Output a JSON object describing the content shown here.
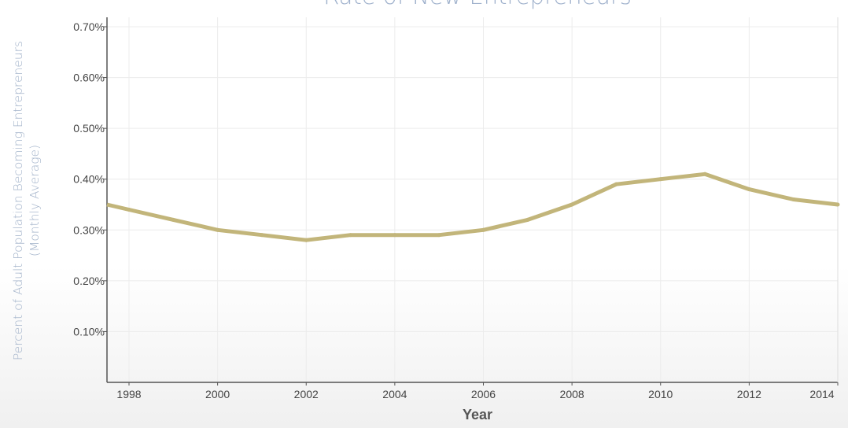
{
  "chart_data": {
    "type": "line",
    "title": "Rate of New Entrepreneurs",
    "xlabel": "Year",
    "ylabel_lines": [
      "Percent of Adult Population Becoming Entrepreneurs",
      "(Monthly Average)"
    ],
    "x": [
      1998,
      1999,
      2000,
      2001,
      2002,
      2003,
      2004,
      2005,
      2006,
      2007,
      2008,
      2009,
      2010,
      2011,
      2012,
      2013,
      2014
    ],
    "series": [
      {
        "values": [
          0.34,
          0.32,
          0.3,
          0.29,
          0.28,
          0.29,
          0.29,
          0.29,
          0.3,
          0.32,
          0.35,
          0.39,
          0.4,
          0.41,
          0.38,
          0.36,
          0.35
        ],
        "color": "#c2b57a"
      }
    ],
    "xlim": [
      1998,
      2014
    ],
    "ylim": [
      0,
      0.7
    ],
    "x_ticks": [
      "1998",
      "2000",
      "2002",
      "2004",
      "2006",
      "2008",
      "2010",
      "2012",
      "2014"
    ],
    "y_ticks": [
      "0.10%",
      "0.20%",
      "0.30%",
      "0.40%",
      "0.50%",
      "0.60%",
      "0.70%"
    ],
    "grid": true,
    "colors": {
      "title": "#9fb1cc",
      "ylabel": "#a3b3ca",
      "grid": "#ececec",
      "axis": "#555555"
    }
  }
}
